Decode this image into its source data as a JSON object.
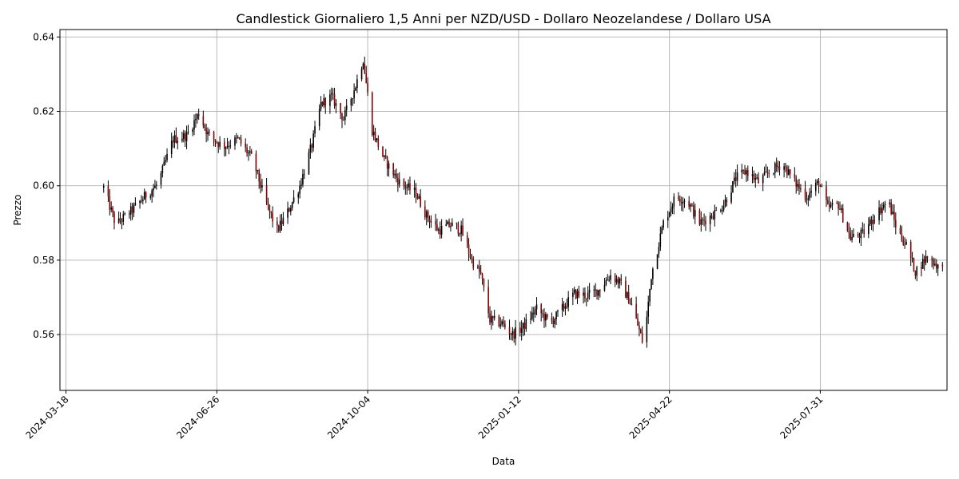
{
  "chart_data": {
    "type": "candlestick",
    "title": "Candlestick Giornaliero 1,5 Anni per NZD/USD - Dollaro Neozelandese / Dollaro USA",
    "xlabel": "Data",
    "ylabel": "Prezzo",
    "x_range": [
      "2024-03-14",
      "2025-10-23"
    ],
    "ylim": [
      0.545,
      0.642
    ],
    "grid": true,
    "x_ticks": [
      "2024-03-18",
      "2024-06-26",
      "2024-10-04",
      "2025-01-12",
      "2025-04-22",
      "2025-07-31"
    ],
    "y_ticks": [
      0.56,
      0.58,
      0.6,
      0.62,
      0.64
    ],
    "y_tick_labels": [
      "0.56",
      "0.58",
      "0.60",
      "0.62",
      "0.64"
    ],
    "colors": {
      "up": "#000000",
      "down": "#8b0000",
      "wick": "#000000"
    },
    "series": [
      {
        "close_trend": [
          [
            "2024-04-12",
            0.5995
          ],
          [
            "2024-04-20",
            0.5895
          ],
          [
            "2024-05-01",
            0.5935
          ],
          [
            "2024-05-10",
            0.5975
          ],
          [
            "2024-05-18",
            0.6005
          ],
          [
            "2024-05-28",
            0.6125
          ],
          [
            "2024-06-06",
            0.6135
          ],
          [
            "2024-06-14",
            0.6195
          ],
          [
            "2024-06-20",
            0.614
          ],
          [
            "2024-06-30",
            0.6105
          ],
          [
            "2024-07-10",
            0.6125
          ],
          [
            "2024-07-20",
            0.607
          ],
          [
            "2024-07-28",
            0.596
          ],
          [
            "2024-08-05",
            0.588
          ],
          [
            "2024-08-12",
            0.593
          ],
          [
            "2024-08-20",
            0.6
          ],
          [
            "2024-08-28",
            0.611
          ],
          [
            "2024-09-03",
            0.622
          ],
          [
            "2024-09-10",
            0.624
          ],
          [
            "2024-09-18",
            0.618
          ],
          [
            "2024-09-26",
            0.627
          ],
          [
            "2024-10-01",
            0.634
          ],
          [
            "2024-10-07",
            0.615
          ],
          [
            "2024-10-15",
            0.607
          ],
          [
            "2024-10-25",
            0.601
          ],
          [
            "2024-11-05",
            0.598
          ],
          [
            "2024-11-12",
            0.592
          ],
          [
            "2024-11-20",
            0.588
          ],
          [
            "2024-11-28",
            0.5895
          ],
          [
            "2024-12-05",
            0.588
          ],
          [
            "2024-12-12",
            0.58
          ],
          [
            "2024-12-18",
            0.576
          ],
          [
            "2024-12-24",
            0.564
          ],
          [
            "2025-01-01",
            0.563
          ],
          [
            "2025-01-08",
            0.56
          ],
          [
            "2025-01-15",
            0.562
          ],
          [
            "2025-01-24",
            0.567
          ],
          [
            "2025-02-02",
            0.563
          ],
          [
            "2025-02-08",
            0.566
          ],
          [
            "2025-02-18",
            0.571
          ],
          [
            "2025-02-26",
            0.5705
          ],
          [
            "2025-03-06",
            0.572
          ],
          [
            "2025-03-14",
            0.576
          ],
          [
            "2025-03-20",
            0.574
          ],
          [
            "2025-03-28",
            0.568
          ],
          [
            "2025-04-05",
            0.557
          ],
          [
            "2025-04-10",
            0.576
          ],
          [
            "2025-04-18",
            0.59
          ],
          [
            "2025-04-26",
            0.597
          ],
          [
            "2025-05-04",
            0.596
          ],
          [
            "2025-05-12",
            0.59
          ],
          [
            "2025-05-20",
            0.592
          ],
          [
            "2025-05-28",
            0.595
          ],
          [
            "2025-06-05",
            0.602
          ],
          [
            "2025-06-12",
            0.604
          ],
          [
            "2025-06-20",
            0.601
          ],
          [
            "2025-06-28",
            0.604
          ],
          [
            "2025-07-06",
            0.606
          ],
          [
            "2025-07-14",
            0.601
          ],
          [
            "2025-07-22",
            0.597
          ],
          [
            "2025-07-30",
            0.601
          ],
          [
            "2025-08-05",
            0.594
          ],
          [
            "2025-08-12",
            0.595
          ],
          [
            "2025-08-20",
            0.586
          ],
          [
            "2025-08-28",
            0.587
          ],
          [
            "2025-09-05",
            0.592
          ],
          [
            "2025-09-14",
            0.596
          ],
          [
            "2025-09-20",
            0.588
          ],
          [
            "2025-09-26",
            0.584
          ],
          [
            "2025-10-02",
            0.577
          ],
          [
            "2025-10-10",
            0.581
          ],
          [
            "2025-10-18",
            0.578
          ],
          [
            "2025-10-20",
            0.5775
          ]
        ]
      }
    ]
  }
}
